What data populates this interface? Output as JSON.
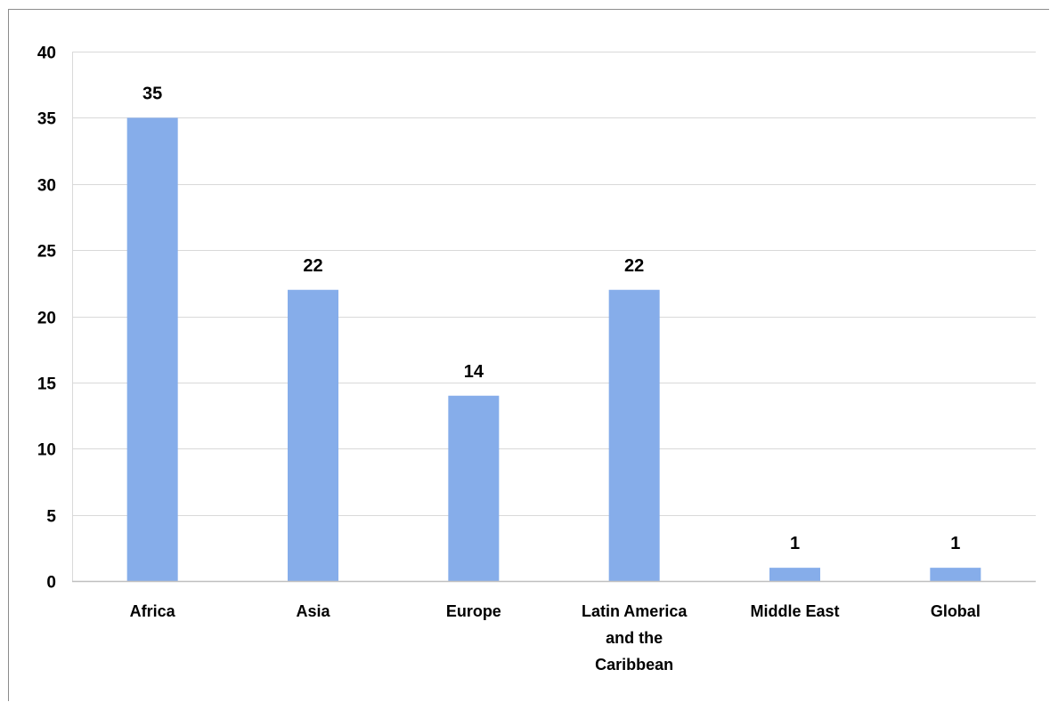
{
  "chart_data": {
    "type": "bar",
    "title": "",
    "xlabel": "",
    "ylabel": "",
    "categories": [
      "Africa",
      "Asia",
      "Europe",
      "Latin America and the Caribbean",
      "Middle East",
      "Global"
    ],
    "category_label_lines": [
      [
        "Africa"
      ],
      [
        "Asia"
      ],
      [
        "Europe"
      ],
      [
        "Latin America",
        "and the",
        "Caribbean"
      ],
      [
        "Middle East"
      ],
      [
        "Global"
      ]
    ],
    "values": [
      35,
      22,
      14,
      22,
      1,
      1
    ],
    "data_labels": [
      "35",
      "22",
      "14",
      "22",
      "1",
      "1"
    ],
    "ylim": [
      0,
      40
    ],
    "yticks": [
      0,
      5,
      10,
      15,
      20,
      25,
      30,
      35,
      40
    ],
    "grid": true,
    "legend": "none",
    "colors": {
      "bar": "#86adea",
      "grid": "#d9d9d9",
      "axis": "#bfbfbf",
      "frame": "#8c8c8c"
    }
  }
}
